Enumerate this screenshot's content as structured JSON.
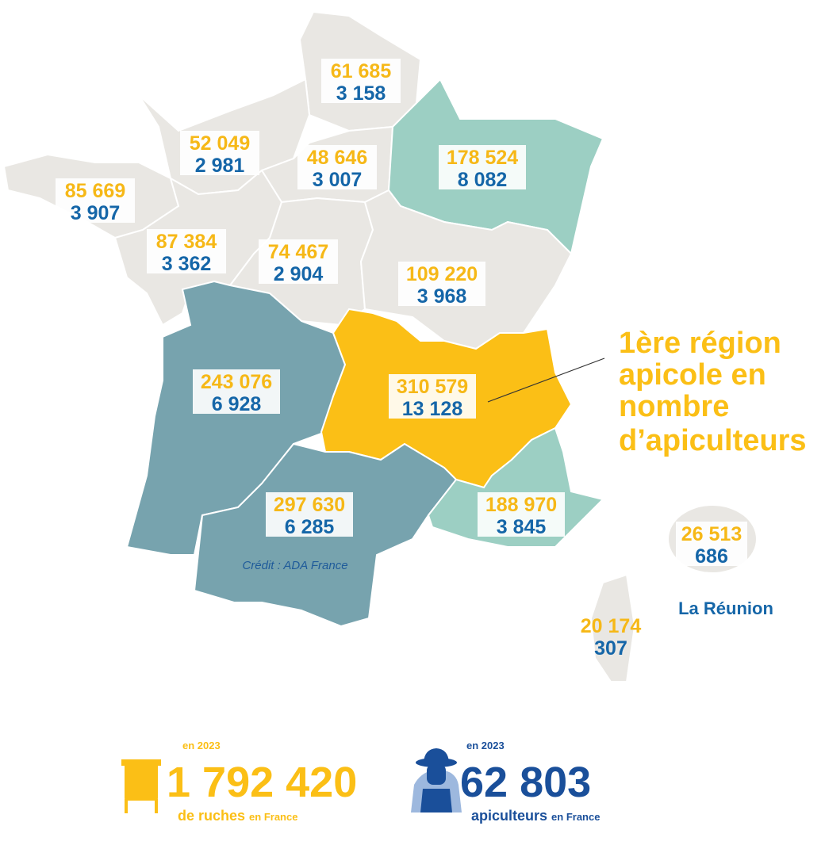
{
  "regions": [
    {
      "hives": "61 685",
      "beekeepers": "3 158",
      "color": "#e9e7e3"
    },
    {
      "hives": "52 049",
      "beekeepers": "2 981",
      "color": "#e9e7e3"
    },
    {
      "hives": "48 646",
      "beekeepers": "3 007",
      "color": "#e9e7e3"
    },
    {
      "hives": "178 524",
      "beekeepers": "8 082",
      "color": "#9ccfc3"
    },
    {
      "hives": "85 669",
      "beekeepers": "3 907",
      "color": "#e9e7e3"
    },
    {
      "hives": "87 384",
      "beekeepers": "3 362",
      "color": "#e9e7e3"
    },
    {
      "hives": "74 467",
      "beekeepers": "2 904",
      "color": "#e9e7e3"
    },
    {
      "hives": "109 220",
      "beekeepers": "3 968",
      "color": "#e9e7e3"
    },
    {
      "hives": "243 076",
      "beekeepers": "6 928",
      "color": "#77a3ae"
    },
    {
      "hives": "310 579",
      "beekeepers": "13 128",
      "color": "#fbbf16"
    },
    {
      "hives": "297 630",
      "beekeepers": "6 285",
      "color": "#77a3ae"
    },
    {
      "hives": "188 970",
      "beekeepers": "3 845",
      "color": "#9ccfc3"
    },
    {
      "hives": "26 513",
      "beekeepers": "686",
      "color": "#e9e7e3",
      "label": "La Réunion"
    },
    {
      "hives": "20 174",
      "beekeepers": "307",
      "color": "#e9e7e3"
    }
  ],
  "callout": [
    "1ère région",
    "apicole en",
    "nombre",
    "d’apiculteurs"
  ],
  "credit": "Crédit : ADA France",
  "totals": [
    {
      "year": "en 2023",
      "value": "1 792 420",
      "unit": "de ruches",
      "suffix": "en France"
    },
    {
      "year": "en 2023",
      "value": "62 803",
      "unit": "apiculteurs",
      "suffix": "en France"
    }
  ]
}
